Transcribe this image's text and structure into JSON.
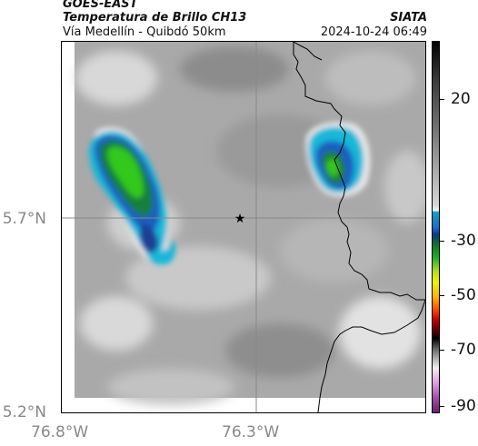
{
  "header": {
    "satellite": "GOES-EAST",
    "product": "Temperatura de Brillo CH13",
    "route": "Vía Medellín - Quibdó 50km",
    "org": "SIATA",
    "datetime": "2024-10-24 06:49"
  },
  "axes": {
    "lat_ticks": [
      "5.7°N",
      "5.2°N"
    ],
    "lon_ticks": [
      "76.8°W",
      "76.3°W"
    ]
  },
  "colorbar": {
    "labels": [
      "20",
      "-30",
      "-50",
      "-70",
      "-90"
    ]
  },
  "colors": {
    "border_line": "#000000",
    "grid_line": "#888888",
    "marker": "#000000"
  }
}
